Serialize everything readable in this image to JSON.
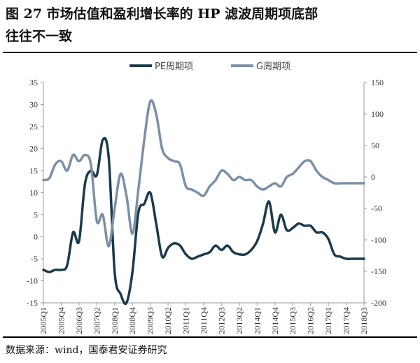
{
  "figure": {
    "title_line1": "图 27  市场估值和盈利增长率的 HP 滤波周期项底部",
    "title_line2": "往往不一致",
    "source": "数据来源：wind，国泰君安证券研究"
  },
  "chart_data": {
    "type": "line",
    "title": "",
    "x_tick_labels": [
      "2005Q1",
      "2005Q4",
      "2006Q3",
      "2007Q2",
      "2008Q1",
      "2008Q4",
      "2009Q3",
      "2010Q2",
      "2011Q1",
      "2011Q4",
      "2012Q3",
      "2013Q2",
      "2014Q1",
      "2014Q4",
      "2015Q3",
      "2016Q2",
      "2017Q1",
      "2017Q4",
      "2018Q3"
    ],
    "x_range": [
      0,
      54
    ],
    "left_axis": {
      "ylim": [
        -15,
        35
      ],
      "ticks": [
        -15,
        -10,
        -5,
        0,
        5,
        10,
        15,
        20,
        25,
        30,
        35
      ]
    },
    "right_axis": {
      "ylim": [
        -200,
        150
      ],
      "ticks": [
        -200,
        -150,
        -100,
        -50,
        0,
        50,
        100,
        150
      ]
    },
    "legend_position": "top-center",
    "series": [
      {
        "name": "PE周期项",
        "axis": "left",
        "color": "#1b3a4b",
        "x": [
          0,
          1,
          2,
          3,
          4,
          5,
          6,
          7,
          8,
          9,
          10,
          11,
          12,
          13,
          14,
          15,
          16,
          17,
          18,
          19,
          20,
          21,
          22,
          23,
          24,
          25,
          26,
          27,
          28,
          29,
          30,
          31,
          32,
          33,
          34,
          35,
          36,
          37,
          38,
          39,
          40,
          41,
          42,
          43,
          44,
          45,
          46,
          47,
          48,
          49,
          50,
          51,
          52,
          53,
          54
        ],
        "values": [
          -7.5,
          -8,
          -7.5,
          -7.5,
          -6.5,
          1,
          -1,
          12,
          15,
          14,
          22,
          18,
          -8,
          -13,
          -15,
          -8,
          5.5,
          7.5,
          10,
          3,
          -4.5,
          -2.5,
          -1.5,
          -2,
          -4,
          -5,
          -4.5,
          -4,
          -3.5,
          -2,
          -3,
          -2,
          -3.5,
          -4,
          -4,
          -3,
          -1,
          3,
          8,
          1,
          5,
          1.5,
          2,
          3,
          2.5,
          2.5,
          1,
          1,
          -0.5,
          -4,
          -4.5,
          -5,
          -5,
          -5,
          -5
        ]
      },
      {
        "name": "G周期项",
        "axis": "right",
        "color": "#7b90a6",
        "x": [
          0,
          1,
          2,
          3,
          4,
          5,
          6,
          7,
          8,
          9,
          10,
          11,
          12,
          13,
          14,
          15,
          16,
          17,
          18,
          19,
          20,
          21,
          22,
          23,
          24,
          25,
          26,
          27,
          28,
          29,
          30,
          31,
          32,
          33,
          34,
          35,
          36,
          37,
          38,
          39,
          40,
          41,
          42,
          43,
          44,
          45,
          46,
          47,
          48,
          49,
          50,
          51,
          52,
          53,
          54
        ],
        "values": [
          -5,
          -2,
          20,
          25,
          10,
          35,
          25,
          35,
          20,
          -70,
          -60,
          -110,
          -50,
          5,
          -30,
          -90,
          -20,
          60,
          120,
          100,
          45,
          30,
          25,
          20,
          -15,
          -20,
          -25,
          -30,
          -15,
          -5,
          10,
          5,
          -5,
          0,
          -5,
          -5,
          -15,
          -20,
          -15,
          -10,
          -15,
          0,
          5,
          15,
          25,
          25,
          10,
          0,
          -5,
          -10,
          -10,
          -10,
          -10,
          -10,
          -10
        ]
      }
    ]
  }
}
